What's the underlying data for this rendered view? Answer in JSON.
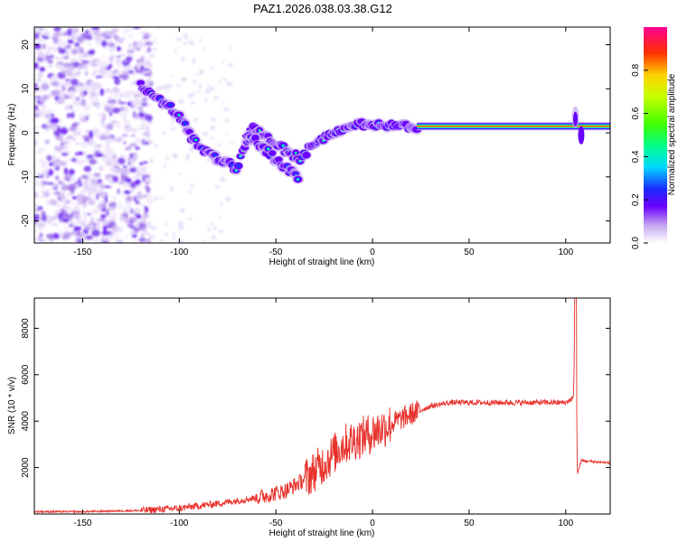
{
  "title": "PAZ1.2026.038.03.38.G12",
  "chart_data": [
    {
      "type": "heatmap",
      "xlabel": "Height of straight line (km)",
      "ylabel": "Frequency (Hz)",
      "xlim": [
        -175,
        123
      ],
      "ylim": [
        -25,
        24
      ],
      "x_ticks": [
        -150,
        -100,
        -50,
        0,
        50,
        100
      ],
      "y_ticks": [
        -20,
        -10,
        0,
        10,
        20
      ],
      "colorbar": {
        "label": "Normalized spectral amplitude",
        "range": [
          0,
          1
        ],
        "ticks": [
          0.0,
          0.2,
          0.4,
          0.6,
          0.8
        ],
        "tick_labels": [
          "0.0",
          "0.2",
          "0.4",
          "0.6",
          "0.8"
        ]
      },
      "main_trace": [
        {
          "x": -120,
          "y": 11
        },
        {
          "x": -110,
          "y": 7
        },
        {
          "x": -102,
          "y": 5
        },
        {
          "x": -95,
          "y": 0
        },
        {
          "x": -88,
          "y": -4
        },
        {
          "x": -80,
          "y": -6
        },
        {
          "x": -70,
          "y": -8
        },
        {
          "x": -62,
          "y": 1
        },
        {
          "x": -55,
          "y": -1
        },
        {
          "x": -45,
          "y": -4
        },
        {
          "x": -37,
          "y": -6
        },
        {
          "x": -30,
          "y": -2
        },
        {
          "x": -20,
          "y": 0
        },
        {
          "x": -10,
          "y": 2
        },
        {
          "x": 0,
          "y": 2
        },
        {
          "x": 10,
          "y": 1.5
        },
        {
          "x": 25,
          "y": 1.5
        },
        {
          "x": 50,
          "y": 1.5
        },
        {
          "x": 100,
          "y": 1.5
        },
        {
          "x": 123,
          "y": 1.5
        }
      ],
      "secondary_trace": [
        {
          "x": -65,
          "y": 0
        },
        {
          "x": -55,
          "y": -4
        },
        {
          "x": -45,
          "y": -8
        },
        {
          "x": -38,
          "y": -10
        }
      ]
    },
    {
      "type": "line",
      "xlabel": "Height of straight line (km)",
      "ylabel": "SNR (10 * v/v)",
      "xlim": [
        -175,
        123
      ],
      "ylim": [
        0,
        9300
      ],
      "x_ticks": [
        -150,
        -100,
        -50,
        0,
        50,
        100
      ],
      "y_ticks": [
        2000,
        4000,
        6000,
        8000
      ],
      "series": [
        {
          "color": "#e8302a",
          "points": [
            {
              "x": -175,
              "y": 100
            },
            {
              "x": -150,
              "y": 100
            },
            {
              "x": -120,
              "y": 150
            },
            {
              "x": -100,
              "y": 250
            },
            {
              "x": -80,
              "y": 450
            },
            {
              "x": -60,
              "y": 700
            },
            {
              "x": -45,
              "y": 1000
            },
            {
              "x": -35,
              "y": 1500
            },
            {
              "x": -25,
              "y": 2200
            },
            {
              "x": -15,
              "y": 3000
            },
            {
              "x": 0,
              "y": 3500
            },
            {
              "x": 10,
              "y": 3900
            },
            {
              "x": 20,
              "y": 4300
            },
            {
              "x": 30,
              "y": 4650
            },
            {
              "x": 40,
              "y": 4800
            },
            {
              "x": 60,
              "y": 4800
            },
            {
              "x": 80,
              "y": 4800
            },
            {
              "x": 100,
              "y": 4800
            },
            {
              "x": 104,
              "y": 5000
            },
            {
              "x": 105,
              "y": 9300
            },
            {
              "x": 106,
              "y": 1700
            },
            {
              "x": 108,
              "y": 2300
            },
            {
              "x": 115,
              "y": 2250
            },
            {
              "x": 123,
              "y": 2200
            }
          ]
        }
      ]
    }
  ]
}
